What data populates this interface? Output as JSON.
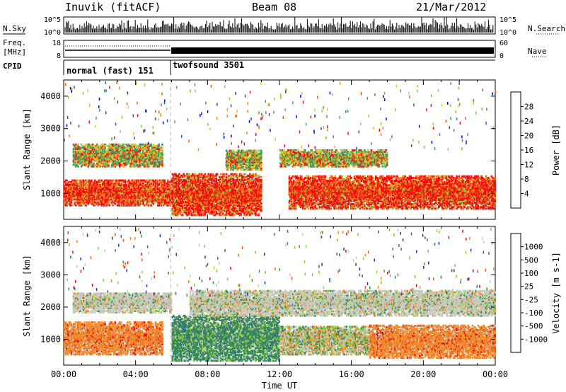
{
  "header": {
    "station": "Inuvik (fitACF)",
    "beam": "Beam 08",
    "date": "21/Mar/2012"
  },
  "top_panels": {
    "nsky_label": "N.Sky",
    "nsearch_label": "N.Search",
    "freq_label_1": "Freq.",
    "freq_label_2": "[MHz]",
    "nave_label": "Nave",
    "cpid_label": "CPID",
    "count_ticks": [
      "10^5",
      "10^0"
    ],
    "freq_ticks": [
      "18",
      "8"
    ],
    "nave_ticks": [
      "60",
      "0"
    ],
    "cpid_segments": [
      {
        "name": "normal (fast) 151",
        "start_h": 0,
        "end_h": 6
      },
      {
        "name": "twofsound 3501",
        "start_h": 6,
        "end_h": 24
      }
    ]
  },
  "chart_data": [
    {
      "type": "heatmap",
      "ylabel": "Slant Range [km]",
      "ylim": [
        200,
        4500
      ],
      "yticks": [
        "1000",
        "2000",
        "3000",
        "4000"
      ],
      "xlim_hours": [
        0,
        24
      ],
      "colorbar": {
        "label": "Power [dB]",
        "ticks": [
          "28",
          "24",
          "20",
          "16",
          "12",
          "8",
          "4"
        ],
        "colors": [
          "#0000ff",
          "#2a4fa8",
          "#3a9a6a",
          "#8fcf3a",
          "#f0c020",
          "#f28a1e",
          "#f25a14",
          "#f01010"
        ]
      },
      "bands": [
        {
          "start_h": 0.0,
          "end_h": 6.0,
          "r_min": 600,
          "r_max": 1400,
          "level": "high"
        },
        {
          "start_h": 0.5,
          "end_h": 5.5,
          "r_min": 1800,
          "r_max": 2500,
          "level": "mid"
        },
        {
          "start_h": 6.0,
          "end_h": 11.0,
          "r_min": 300,
          "r_max": 1600,
          "level": "high"
        },
        {
          "start_h": 9.0,
          "end_h": 11.0,
          "r_min": 1700,
          "r_max": 2300,
          "level": "mid"
        },
        {
          "start_h": 12.5,
          "end_h": 24.0,
          "r_min": 500,
          "r_max": 1500,
          "level": "high"
        },
        {
          "start_h": 12.0,
          "end_h": 18.0,
          "r_min": 1800,
          "r_max": 2300,
          "level": "mid"
        }
      ]
    },
    {
      "type": "heatmap",
      "ylabel": "Slant Range [km]",
      "ylim": [
        200,
        4500
      ],
      "yticks": [
        "1000",
        "2000",
        "3000",
        "4000"
      ],
      "xlim_hours": [
        0,
        24
      ],
      "xlabel": "Time UT",
      "xticks": [
        "00:00",
        "04:00",
        "08:00",
        "12:00",
        "16:00",
        "20:00",
        "00:00"
      ],
      "colorbar": {
        "label": "Velocity [m s-1]",
        "ticks": [
          "1000",
          "500",
          "100",
          "25",
          "-25",
          "-100",
          "-500",
          "-1000"
        ],
        "colors": [
          "#2030b0",
          "#2a6a9a",
          "#3a8a5a",
          "#8ace3a",
          "#c8c8c0",
          "#f08a2a",
          "#f05a1a",
          "#e01010"
        ]
      },
      "bands": [
        {
          "start_h": 0.0,
          "end_h": 5.5,
          "r_min": 500,
          "r_max": 1500,
          "level": "negative"
        },
        {
          "start_h": 0.5,
          "end_h": 6.0,
          "r_min": 1800,
          "r_max": 2400,
          "level": "neutral"
        },
        {
          "start_h": 6.0,
          "end_h": 12.0,
          "r_min": 300,
          "r_max": 1700,
          "level": "positive"
        },
        {
          "start_h": 12.0,
          "end_h": 17.0,
          "r_min": 500,
          "r_max": 1400,
          "level": "mixed"
        },
        {
          "start_h": 17.0,
          "end_h": 24.0,
          "r_min": 400,
          "r_max": 1400,
          "level": "negative"
        },
        {
          "start_h": 7.0,
          "end_h": 24.0,
          "r_min": 1700,
          "r_max": 2500,
          "level": "neutral"
        }
      ]
    }
  ]
}
